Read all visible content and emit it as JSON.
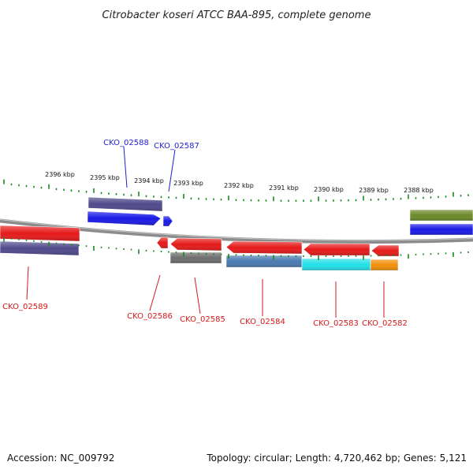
{
  "title": "Citrobacter koseri ATCC BAA-895, complete genome",
  "colors": {
    "tick": "#1a8a1a",
    "backbone": "#8c8c8c",
    "label_forward": "#1f1fd6",
    "label_reverse": "#d61a1a"
  },
  "ticks": [
    "2396 kbp",
    "2395 kbp",
    "2394 kbp",
    "2393 kbp",
    "2392 kbp",
    "2391 kbp",
    "2390 kbp",
    "2389 kbp",
    "2388 kbp"
  ],
  "features": [
    {
      "id": "gene-upper-left",
      "color": "#504a8c",
      "kind": "box"
    },
    {
      "id": "cds-upper-left",
      "color": "#1a1ae6",
      "kind": "arrow-right"
    },
    {
      "id": "cds-small-fwd",
      "color": "#1a1ae6",
      "kind": "arrow-right"
    },
    {
      "id": "gene-right-green",
      "color": "#6b8a2a",
      "kind": "box"
    },
    {
      "id": "cds-right-blue",
      "color": "#1a1ae6",
      "kind": "box"
    },
    {
      "id": "cds-left-red",
      "color": "#e61a1a",
      "kind": "box"
    },
    {
      "id": "gene-left-purple",
      "color": "#504a8c",
      "kind": "box"
    },
    {
      "id": "cds-small-rev",
      "color": "#e61a1a",
      "kind": "arrow-left"
    },
    {
      "id": "cds-02585",
      "color": "#e61a1a",
      "kind": "arrow-left"
    },
    {
      "id": "gene-02585",
      "color": "#6e6e6e",
      "kind": "box"
    },
    {
      "id": "cds-02584",
      "color": "#e61a1a",
      "kind": "arrow-left"
    },
    {
      "id": "gene-02584",
      "color": "#4a7ab0",
      "kind": "box"
    },
    {
      "id": "cds-02583",
      "color": "#e61a1a",
      "kind": "arrow-left"
    },
    {
      "id": "gene-02583",
      "color": "#22e0e8",
      "kind": "box"
    },
    {
      "id": "cds-02582",
      "color": "#e61a1a",
      "kind": "arrow-left"
    },
    {
      "id": "gene-02582",
      "color": "#f0900a",
      "kind": "box"
    }
  ],
  "gene_labels": [
    {
      "text": "CKO_02588",
      "strand": "forward"
    },
    {
      "text": "CKO_02587",
      "strand": "forward"
    },
    {
      "text": "CKO_02589",
      "strand": "reverse"
    },
    {
      "text": "CKO_02586",
      "strand": "reverse"
    },
    {
      "text": "CKO_02585",
      "strand": "reverse"
    },
    {
      "text": "CKO_02584",
      "strand": "reverse"
    },
    {
      "text": "CKO_02583",
      "strand": "reverse"
    },
    {
      "text": "CKO_02582",
      "strand": "reverse"
    }
  ],
  "footer": {
    "accession": "Accession: NC_009792",
    "summary": "Topology: circular; Length: 4,720,462 bp; Genes: 5,121"
  }
}
